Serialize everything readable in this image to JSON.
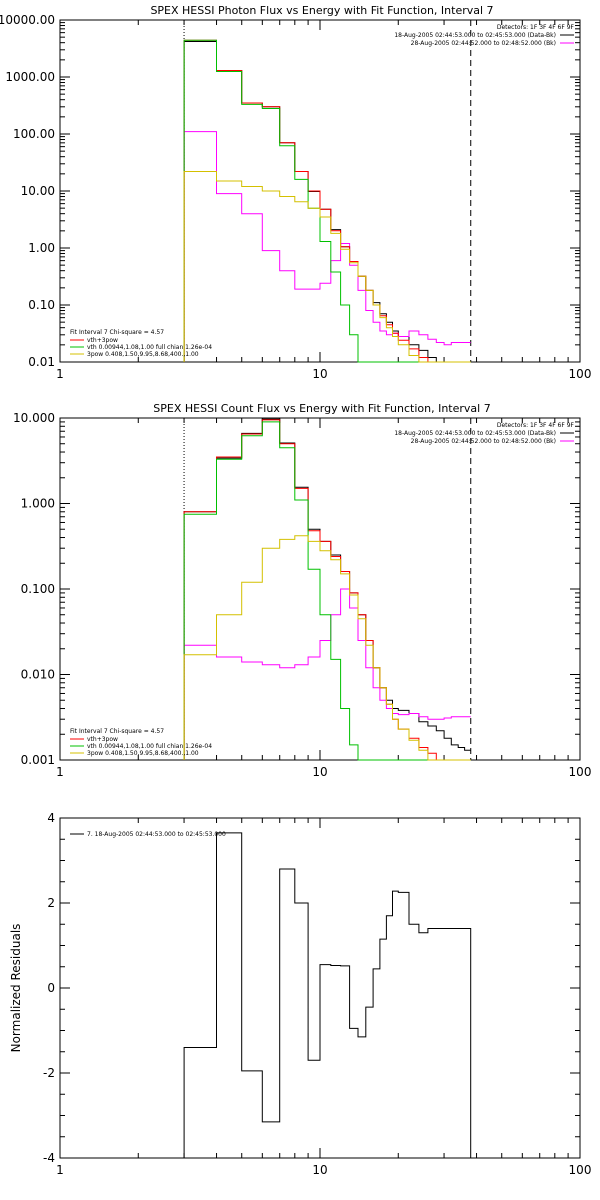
{
  "panels": [
    {
      "id": "photon",
      "title": "SPEX HESSI Photon Flux vs Energy with Fit Function, Interval 7",
      "detectors_label": "Detectors: 1F 3F 4F 6F 9F",
      "legend_right": [
        {
          "text": "18-Aug-2005 02:44:53.000 to 02:45:53.000 (Data-Bk)",
          "color": "#000000"
        },
        {
          "text": "28-Aug-2005 02:44:52.000 to 02:48:52.000 (Bk)",
          "color": "#ff00ff"
        }
      ],
      "legend_left_header": "Fit Interval 7   Chi-square = 4.57",
      "legend_left": [
        {
          "text": "vth+3pow",
          "color": "#ff0000"
        },
        {
          "text": "vth 0.00944,1.08,1.00  full chian 1.26e-04",
          "color": "#00c000"
        },
        {
          "text": "3pow 0.408,1.50,9.95,8.68,400.,1.00",
          "color": "#d4c000"
        }
      ],
      "y_ticks": [
        "10000.00",
        "1000.00",
        "100.00",
        "10.00",
        "1.00",
        "0.10",
        "0.01"
      ],
      "x_ticks": [
        "1",
        "10",
        "100"
      ]
    },
    {
      "id": "count",
      "title": "SPEX HESSI Count Flux vs Energy with Fit Function, Interval 7",
      "detectors_label": "Detectors: 1F 3F 4F 6F 9F",
      "legend_right": [
        {
          "text": "18-Aug-2005 02:44:53.000 to 02:45:53.000 (Data-Bk)",
          "color": "#000000"
        },
        {
          "text": "28-Aug-2005 02:44:52.000 to 02:48:52.000 (Bk)",
          "color": "#ff00ff"
        }
      ],
      "legend_left_header": "Fit Interval 7   Chi-square = 4.57",
      "legend_left": [
        {
          "text": "vth+3pow",
          "color": "#ff0000"
        },
        {
          "text": "vth 0.00944,1.08,1.00  full chian 1.26e-04",
          "color": "#00c000"
        },
        {
          "text": "3pow 0.408,1.50,9.95,8.68,400.,1.00",
          "color": "#d4c000"
        }
      ],
      "y_ticks": [
        "10.000",
        "1.000",
        "0.100",
        "0.010",
        "0.001"
      ],
      "x_ticks": [
        "1",
        "10",
        "100"
      ]
    },
    {
      "id": "residuals",
      "title": "",
      "ylabel": "Normalized Residuals",
      "legend_text": "7. 18-Aug-2005 02:44:53.000 to 02:45:53.000",
      "y_ticks": [
        "4",
        "2",
        "0",
        "-2",
        "-4"
      ],
      "x_ticks": [
        "1",
        "10",
        "100"
      ]
    }
  ],
  "chart_data": [
    {
      "type": "line",
      "title": "SPEX HESSI Photon Flux vs Energy with Fit Function, Interval 7",
      "x_scale": "log",
      "y_scale": "log",
      "xlim": [
        1,
        100
      ],
      "ylim": [
        0.01,
        10000
      ],
      "legend": "top-right",
      "bin_edges": [
        3,
        4,
        5,
        6,
        7,
        8,
        9,
        10,
        11,
        12,
        13,
        14,
        15,
        16,
        17,
        18,
        19,
        20,
        22,
        24,
        26,
        28,
        30,
        32,
        34,
        36,
        38
      ],
      "vlines": [
        {
          "x": 3,
          "style": "dotted"
        },
        {
          "x": 38,
          "style": "dashed"
        }
      ],
      "series": [
        {
          "name": "Data-Bk",
          "color": "#000000",
          "values": [
            4200,
            1300,
            350,
            300,
            70,
            22,
            9.8,
            4.8,
            2.1,
            1.05,
            0.58,
            0.32,
            0.18,
            0.11,
            0.07,
            0.05,
            0.035,
            0.028,
            0.02,
            0.016,
            0.012,
            0.01,
            0.009,
            0.009,
            0.009,
            0.009
          ]
        },
        {
          "name": "Bk",
          "color": "#ff00ff",
          "values": [
            110,
            9,
            4,
            0.9,
            0.4,
            0.19,
            0.19,
            0.24,
            0.6,
            1.2,
            0.5,
            0.18,
            0.08,
            0.05,
            0.035,
            0.03,
            0.032,
            0.028,
            0.035,
            0.03,
            0.025,
            0.022,
            0.02,
            0.022,
            0.022,
            0.022
          ]
        },
        {
          "name": "vth+3pow",
          "color": "#ff0000",
          "values": [
            4400,
            1300,
            350,
            300,
            70,
            22,
            10,
            4.8,
            2.0,
            1.05,
            0.58,
            0.32,
            0.18,
            0.1,
            0.065,
            0.045,
            0.032,
            0.024,
            0.017,
            0.012,
            0.01,
            0.01,
            0.01,
            0.01,
            0.01,
            0.01
          ]
        },
        {
          "name": "vth",
          "color": "#00c000",
          "values": [
            4400,
            1250,
            330,
            280,
            62,
            16,
            5,
            1.3,
            0.38,
            0.1,
            0.03,
            0.01,
            0.01,
            0.01,
            0.01,
            0.01,
            0.01,
            0.01,
            0.01,
            0.01,
            0.01,
            0.01,
            0.01,
            0.01,
            0.01,
            0.01
          ]
        },
        {
          "name": "3pow",
          "color": "#d4c000",
          "values": [
            22,
            15,
            12,
            10,
            8,
            6.5,
            5,
            3.5,
            1.8,
            0.95,
            0.55,
            0.32,
            0.18,
            0.1,
            0.06,
            0.04,
            0.028,
            0.02,
            0.013,
            0.01,
            0.01,
            0.01,
            0.01,
            0.01,
            0.01,
            0.01
          ]
        }
      ]
    },
    {
      "type": "line",
      "title": "SPEX HESSI Count Flux vs Energy with Fit Function, Interval 7",
      "x_scale": "log",
      "y_scale": "log",
      "xlim": [
        1,
        100
      ],
      "ylim": [
        0.001,
        10
      ],
      "legend": "top-right",
      "bin_edges": [
        3,
        4,
        5,
        6,
        7,
        8,
        9,
        10,
        11,
        12,
        13,
        14,
        15,
        16,
        17,
        18,
        19,
        20,
        22,
        24,
        26,
        28,
        30,
        32,
        34,
        36,
        38
      ],
      "vlines": [
        {
          "x": 3,
          "style": "dotted"
        },
        {
          "x": 38,
          "style": "dashed"
        }
      ],
      "series": [
        {
          "name": "Data-Bk",
          "color": "#000000",
          "values": [
            0.8,
            3.4,
            6.6,
            9.7,
            5.1,
            1.55,
            0.5,
            0.36,
            0.25,
            0.16,
            0.09,
            0.05,
            0.025,
            0.012,
            0.007,
            0.005,
            0.004,
            0.0038,
            0.0035,
            0.0028,
            0.0025,
            0.0022,
            0.0018,
            0.0015,
            0.0014,
            0.0013
          ]
        },
        {
          "name": "Bk",
          "color": "#ff00ff",
          "values": [
            0.022,
            0.016,
            0.014,
            0.013,
            0.012,
            0.013,
            0.016,
            0.025,
            0.05,
            0.1,
            0.06,
            0.025,
            0.012,
            0.007,
            0.005,
            0.004,
            0.0035,
            0.0034,
            0.0035,
            0.0032,
            0.003,
            0.003,
            0.0031,
            0.0032,
            0.0032,
            0.0032
          ]
        },
        {
          "name": "vth+3pow",
          "color": "#ff0000",
          "values": [
            0.8,
            3.5,
            6.5,
            9.5,
            5,
            1.5,
            0.48,
            0.36,
            0.24,
            0.16,
            0.09,
            0.05,
            0.025,
            0.012,
            0.007,
            0.0045,
            0.003,
            0.0023,
            0.0018,
            0.0014,
            0.0012,
            0.001,
            0.001,
            0.001,
            0.001,
            0.001
          ]
        },
        {
          "name": "vth",
          "color": "#00c000",
          "values": [
            0.75,
            3.3,
            6.2,
            9,
            4.5,
            1.1,
            0.17,
            0.05,
            0.015,
            0.004,
            0.0015,
            0.001,
            0.001,
            0.001,
            0.001,
            0.001,
            0.001,
            0.001,
            0.001,
            0.001,
            0.001,
            0.001,
            0.001,
            0.001,
            0.001,
            0.001
          ]
        },
        {
          "name": "3pow",
          "color": "#d4c000",
          "values": [
            0.017,
            0.05,
            0.12,
            0.3,
            0.38,
            0.42,
            0.36,
            0.28,
            0.22,
            0.15,
            0.085,
            0.045,
            0.022,
            0.012,
            0.007,
            0.0045,
            0.003,
            0.0023,
            0.0017,
            0.0013,
            0.001,
            0.001,
            0.001,
            0.001,
            0.001,
            0.001
          ]
        }
      ]
    },
    {
      "type": "line",
      "title": "",
      "ylabel": "Normalized Residuals",
      "x_scale": "log",
      "y_scale": "linear",
      "xlim": [
        1,
        100
      ],
      "ylim": [
        -4,
        4
      ],
      "legend": "top-left",
      "bin_edges": [
        3,
        4,
        5,
        6,
        7,
        8,
        9,
        10,
        11,
        12,
        13,
        14,
        15,
        16,
        17,
        18,
        19,
        20,
        22,
        24,
        26,
        28,
        30,
        32,
        34,
        36,
        38
      ],
      "series": [
        {
          "name": "7. 18-Aug-2005 02:44:53.000 to 02:45:53.000",
          "color": "#000000",
          "values": [
            -1.4,
            3.65,
            -1.95,
            -3.15,
            2.8,
            2.0,
            -1.7,
            0.55,
            0.53,
            0.52,
            -0.95,
            -1.15,
            -0.45,
            0.45,
            1.15,
            1.7,
            2.28,
            2.25,
            1.5,
            1.3,
            1.4,
            1.4,
            1.4,
            1.4,
            1.4,
            1.4
          ]
        }
      ]
    }
  ]
}
